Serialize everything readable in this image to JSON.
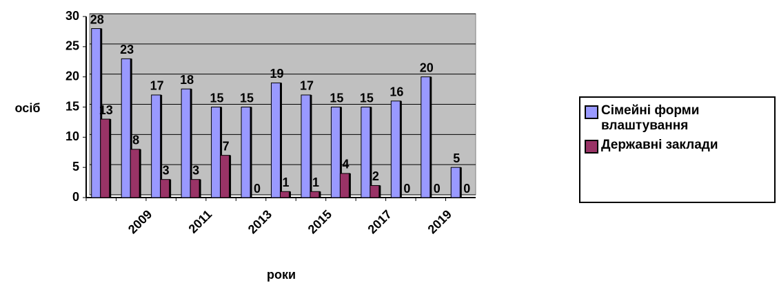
{
  "chart_data": {
    "type": "bar",
    "y_label": "осіб",
    "x_label": "роки",
    "categories": [
      null,
      "2009",
      null,
      "2011",
      null,
      "2013",
      null,
      "2015",
      null,
      "2017",
      null,
      "2019",
      null
    ],
    "series": [
      {
        "name": "Сімейні форми влаштування",
        "color": "#9999ff",
        "values": [
          28,
          23,
          17,
          18,
          15,
          15,
          19,
          17,
          15,
          15,
          16,
          20,
          5
        ]
      },
      {
        "name": "Державні заклади",
        "color": "#993366",
        "values": [
          13,
          8,
          3,
          3,
          7,
          0,
          1,
          1,
          4,
          2,
          0,
          0,
          0
        ]
      }
    ],
    "ylim": [
      0,
      30
    ],
    "yticks": [
      0,
      5,
      10,
      15,
      20,
      25,
      30
    ],
    "grid": true,
    "legend": "right"
  }
}
